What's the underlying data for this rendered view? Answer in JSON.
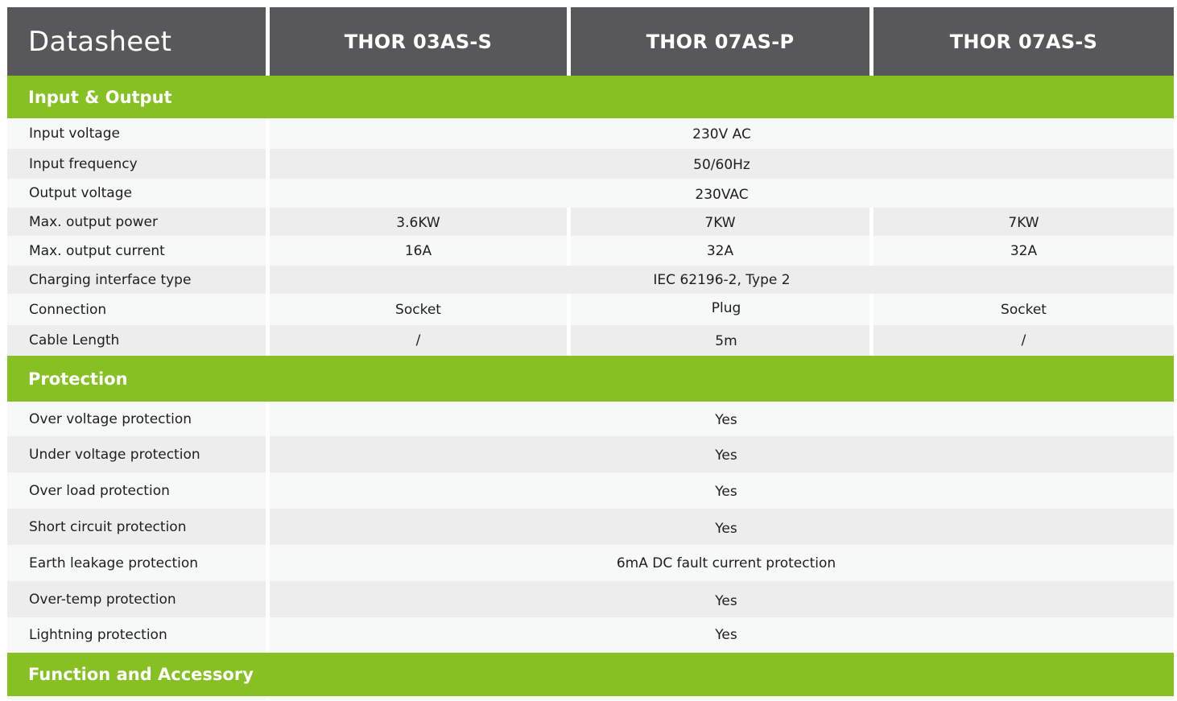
{
  "header": {
    "title": "Datasheet",
    "models": [
      "THOR 03AS-S",
      "THOR 07AS-P",
      "THOR 07AS-S"
    ]
  },
  "colors": {
    "header_bg": "#58585a",
    "section_bg": "#86c023"
  },
  "sections": [
    {
      "title": "Input & Output",
      "rows": [
        {
          "label": "Input voltage",
          "value": "230V AC"
        },
        {
          "label": "Input frequency",
          "value": "50/60Hz"
        },
        {
          "label": "Output voltage",
          "value": "230VAC"
        },
        {
          "label": "Max. output power",
          "values": [
            "3.6KW",
            "7KW",
            "7KW"
          ]
        },
        {
          "label": "Max. output current",
          "values": [
            "16A",
            "32A",
            "32A"
          ]
        },
        {
          "label": "Charging interface type",
          "value": "IEC 62196-2, Type 2"
        },
        {
          "label": "Connection",
          "values": [
            "Socket",
            "Plug",
            "Socket"
          ]
        },
        {
          "label": "Cable Length",
          "values": [
            "/",
            "5m",
            "/"
          ]
        }
      ]
    },
    {
      "title": "Protection",
      "rows": [
        {
          "label": "Over voltage protection",
          "value": "Yes"
        },
        {
          "label": "Under voltage protection",
          "value": "Yes"
        },
        {
          "label": "Over load protection",
          "value": "Yes"
        },
        {
          "label": "Short circuit protection",
          "value": "Yes"
        },
        {
          "label": "Earth leakage protection",
          "value": "6mA DC fault current protection"
        },
        {
          "label": "Over-temp protection",
          "value": "Yes"
        },
        {
          "label": "Lightning protection",
          "value": "Yes"
        }
      ]
    },
    {
      "title": "Function and Accessory",
      "rows": []
    }
  ]
}
